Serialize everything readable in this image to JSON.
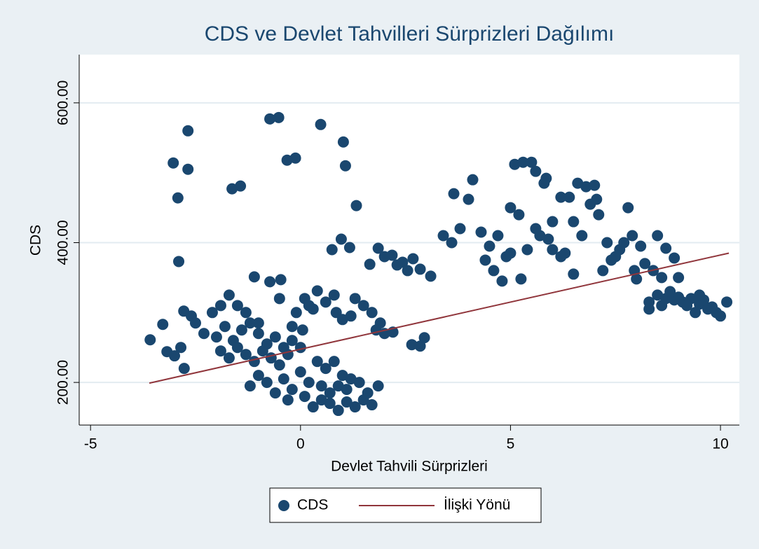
{
  "chart_data": {
    "type": "scatter",
    "title": "CDS ve Devlet Tahvilleri Sürprizleri Dağılımı",
    "x_label": "Devlet Tahvili Sürprizleri",
    "y_label": "CDS",
    "xlim": [
      -5.27,
      10.45
    ],
    "ylim": [
      139,
      669
    ],
    "xticks": [
      -5,
      0,
      5,
      10
    ],
    "yticks": [
      {
        "value": 200,
        "label": "200.00"
      },
      {
        "value": 400,
        "label": "400.00"
      },
      {
        "value": 600,
        "label": "600.00"
      }
    ],
    "grid": true,
    "legend": "bottom",
    "series": [
      {
        "name": "CDS",
        "type": "scatter",
        "color": "#1a476f",
        "x": [
          -3.58,
          -3.28,
          -3.03,
          -2.68,
          -2.68,
          -2.92,
          -2.9,
          -3.18,
          -2.77,
          -2.78,
          -0.52,
          -0.73,
          0.48,
          1.02,
          -0.32,
          -0.12,
          1.07,
          -1.63,
          -1.43,
          1.33,
          0.97,
          1.17,
          0.75,
          -1.1,
          -0.73,
          -0.47,
          0.4,
          1.85,
          2.18,
          2.43,
          2.68,
          2.85,
          3.1,
          2.65,
          2.85,
          2.95,
          1.65,
          2.0,
          2.3,
          2.55,
          -3.0,
          -2.85,
          -2.6,
          -2.5,
          -2.3,
          -2.1,
          -1.9,
          -1.7,
          -1.5,
          -1.3,
          -2.0,
          -1.8,
          -1.6,
          -1.4,
          -1.2,
          -1.0,
          -0.8,
          -0.6,
          -0.4,
          -0.2,
          -1.9,
          -1.7,
          -1.5,
          -1.3,
          -1.1,
          -0.9,
          -0.7,
          -0.5,
          -0.3,
          0.0,
          -1.2,
          -1.0,
          -0.8,
          -0.6,
          -0.4,
          -0.2,
          0.0,
          0.2,
          0.1,
          -0.3,
          0.3,
          0.5,
          0.7,
          0.9,
          1.1,
          1.3,
          1.5,
          1.7,
          1.85,
          1.6,
          0.4,
          0.6,
          0.8,
          1.0,
          1.2,
          1.4,
          0.9,
          0.7,
          1.1,
          0.5,
          -0.1,
          0.1,
          0.3,
          0.6,
          0.85,
          1.0,
          1.3,
          1.5,
          1.7,
          1.9,
          -0.2,
          0.05,
          1.8,
          2.0,
          2.2,
          0.2,
          0.8,
          1.2,
          -0.5,
          -1.0,
          3.4,
          3.6,
          3.8,
          3.65,
          4.1,
          4.0,
          4.3,
          4.5,
          4.7,
          4.4,
          4.6,
          4.9,
          5.0,
          5.1,
          5.3,
          5.5,
          5.6,
          5.2,
          5.4,
          5.25,
          5.8,
          5.85,
          6.0,
          5.9,
          5.7,
          6.2,
          6.4,
          6.6,
          6.5,
          6.3,
          6.8,
          7.0,
          6.9,
          7.05,
          7.1,
          6.7,
          7.3,
          7.5,
          7.2,
          7.6,
          7.8,
          7.7,
          7.9,
          8.1,
          7.95,
          8.2,
          8.4,
          8.5,
          8.7,
          8.9,
          6.0,
          6.2,
          5.6,
          4.8,
          6.5,
          7.4,
          8.0,
          8.6,
          9.0,
          5.0,
          8.3,
          8.5,
          8.7,
          8.9,
          9.1,
          9.3,
          9.5,
          9.7,
          9.9,
          10.15,
          8.3,
          8.6,
          9.0,
          9.2,
          9.4,
          9.6,
          9.8,
          10.0,
          9.5,
          8.8
        ],
        "values": [
          261,
          283,
          514,
          560,
          505,
          464,
          373,
          244,
          220,
          302,
          579,
          577,
          569,
          544,
          518,
          521,
          510,
          477,
          481,
          453,
          405,
          393,
          390,
          351,
          344,
          347,
          331,
          392,
          382,
          372,
          377,
          362,
          352,
          254,
          252,
          264,
          369,
          380,
          368,
          360,
          238,
          250,
          295,
          285,
          270,
          300,
          310,
          325,
          310,
          300,
          265,
          280,
          260,
          275,
          285,
          270,
          255,
          265,
          250,
          260,
          245,
          235,
          250,
          240,
          230,
          245,
          235,
          225,
          240,
          250,
          195,
          210,
          200,
          185,
          205,
          190,
          215,
          200,
          180,
          175,
          165,
          175,
          170,
          160,
          172,
          165,
          175,
          168,
          195,
          185,
          230,
          220,
          230,
          210,
          205,
          200,
          195,
          185,
          190,
          195,
          300,
          320,
          305,
          315,
          300,
          290,
          320,
          310,
          300,
          285,
          280,
          275,
          275,
          270,
          272,
          310,
          325,
          295,
          320,
          285,
          410,
          400,
          420,
          470,
          490,
          462,
          415,
          395,
          410,
          375,
          360,
          380,
          450,
          512,
          515,
          515,
          502,
          440,
          390,
          348,
          485,
          492,
          430,
          405,
          410,
          465,
          465,
          485,
          430,
          385,
          480,
          482,
          455,
          462,
          440,
          410,
          400,
          380,
          360,
          390,
          450,
          400,
          410,
          395,
          360,
          370,
          360,
          410,
          392,
          378,
          390,
          380,
          420,
          345,
          355,
          375,
          348,
          350,
          350,
          385,
          315,
          325,
          320,
          318,
          315,
          320,
          312,
          305,
          300,
          315,
          305,
          310,
          322,
          310,
          300,
          318,
          308,
          295,
          325,
          330
        ]
      },
      {
        "name": "İlişki Yönü",
        "type": "line",
        "color": "#90353b",
        "x": [
          -3.6,
          10.2
        ],
        "values": [
          199,
          385
        ]
      }
    ]
  }
}
